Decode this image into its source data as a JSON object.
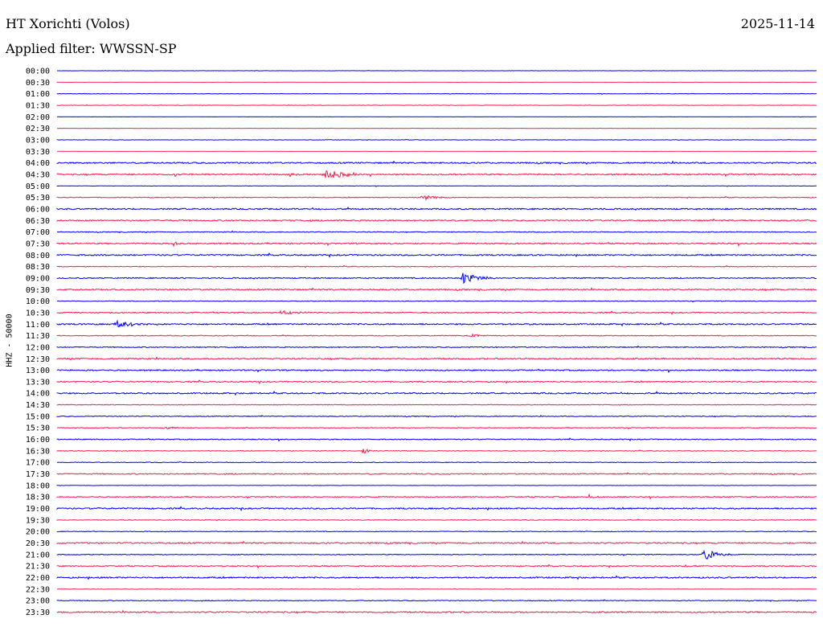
{
  "header": {
    "station": "HT Xorichti (Volos)",
    "date": "2025-11-14",
    "filter_prefix": "Applied filter: ",
    "filter_name": "WWSSN-SP"
  },
  "colors": {
    "trace_even": "#0000ff",
    "trace_odd": "#ff1a4d",
    "background": "#ffffff",
    "text": "#000000"
  },
  "chart_data": {
    "type": "line",
    "subtype": "helicorder",
    "ylabel": "HHZ - 50000",
    "row_labels": [
      "00:00",
      "00:30",
      "01:00",
      "01:30",
      "02:00",
      "02:30",
      "03:00",
      "03:30",
      "04:00",
      "04:30",
      "05:00",
      "05:30",
      "06:00",
      "06:30",
      "07:00",
      "07:30",
      "08:00",
      "08:30",
      "09:00",
      "09:30",
      "10:00",
      "10:30",
      "11:00",
      "11:30",
      "12:00",
      "12:30",
      "13:00",
      "13:30",
      "14:00",
      "14:30",
      "15:00",
      "15:30",
      "16:00",
      "16:30",
      "17:00",
      "17:30",
      "18:00",
      "18:30",
      "19:00",
      "19:30",
      "20:00",
      "20:30",
      "21:00",
      "21:30",
      "22:00",
      "22:30",
      "23:00",
      "23:30"
    ],
    "minutes_per_row": 30,
    "row_noise": [
      0.2,
      0.1,
      0.3,
      0.3,
      0.15,
      0.15,
      0.3,
      0.15,
      1.0,
      1.0,
      0.3,
      0.6,
      1.0,
      1.0,
      0.6,
      1.0,
      1.0,
      0.6,
      0.8,
      1.0,
      0.5,
      0.8,
      1.0,
      0.6,
      0.7,
      1.0,
      0.9,
      0.9,
      1.0,
      0.5,
      0.6,
      0.6,
      0.7,
      0.5,
      0.5,
      0.8,
      0.3,
      0.8,
      1.0,
      0.5,
      0.5,
      1.0,
      0.6,
      0.8,
      1.0,
      0.3,
      0.6,
      1.0
    ],
    "events": [
      {
        "row": 9,
        "minute": 10.5,
        "amplitude": 8,
        "duration_min": 2.0
      },
      {
        "row": 9,
        "minute": 4.6,
        "amplitude": 3,
        "duration_min": 0.8
      },
      {
        "row": 9,
        "minute": 9.1,
        "amplitude": 3,
        "duration_min": 0.8
      },
      {
        "row": 11,
        "minute": 14.4,
        "amplitude": 5,
        "duration_min": 1.2
      },
      {
        "row": 18,
        "minute": 16.0,
        "amplitude": 9,
        "duration_min": 1.5
      },
      {
        "row": 21,
        "minute": 8.8,
        "amplitude": 2.5,
        "duration_min": 1.8
      },
      {
        "row": 22,
        "minute": 2.3,
        "amplitude": 5,
        "duration_min": 2.0
      },
      {
        "row": 23,
        "minute": 16.3,
        "amplitude": 3,
        "duration_min": 0.8
      },
      {
        "row": 31,
        "minute": 4.2,
        "amplitude": 3,
        "duration_min": 1.0
      },
      {
        "row": 33,
        "minute": 12.1,
        "amplitude": 9,
        "duration_min": 0.35
      },
      {
        "row": 37,
        "minute": 21.0,
        "amplitude": 3,
        "duration_min": 0.6
      },
      {
        "row": 42,
        "minute": 25.5,
        "amplitude": 10,
        "duration_min": 1.2
      },
      {
        "row": 43,
        "minute": 24.8,
        "amplitude": 2.5,
        "duration_min": 0.5
      },
      {
        "row": 15,
        "minute": 4.6,
        "amplitude": 3,
        "duration_min": 0.4
      }
    ]
  }
}
